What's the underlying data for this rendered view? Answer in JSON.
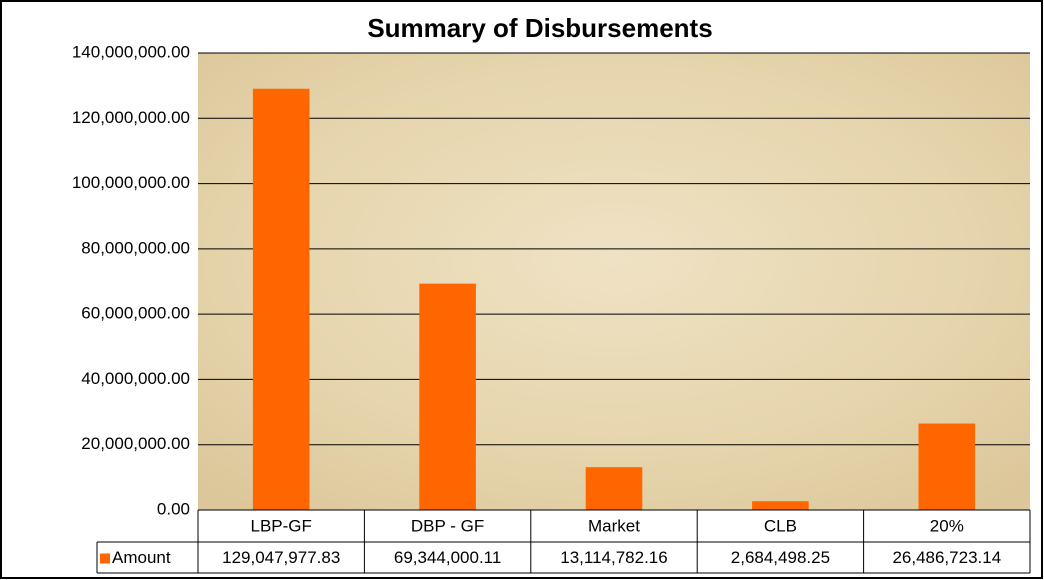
{
  "chart_data": {
    "type": "bar",
    "title": "Summary of Disbursements",
    "categories": [
      "LBP-GF",
      "DBP - GF",
      "Market",
      "CLB",
      "20%"
    ],
    "series": [
      {
        "name": "Amount",
        "color": "#ff6600",
        "values": [
          129047977.83,
          69344000.11,
          13114782.16,
          2684498.25,
          26486723.14
        ],
        "value_labels": [
          "129,047,977.83",
          "69,344,000.11",
          "13,114,782.16",
          "2,684,498.25",
          "26,486,723.14"
        ]
      }
    ],
    "ylim": [
      0,
      140000000
    ],
    "yticks": [
      {
        "value": 0,
        "label": "0.00"
      },
      {
        "value": 20000000,
        "label": "20,000,000.00"
      },
      {
        "value": 40000000,
        "label": "40,000,000.00"
      },
      {
        "value": 60000000,
        "label": "60,000,000.00"
      },
      {
        "value": 80000000,
        "label": "80,000,000.00"
      },
      {
        "value": 100000000,
        "label": "100,000,000.00"
      },
      {
        "value": 120000000,
        "label": "120,000,000.00"
      },
      {
        "value": 140000000,
        "label": "140,000,000.00"
      }
    ],
    "grid": true
  }
}
